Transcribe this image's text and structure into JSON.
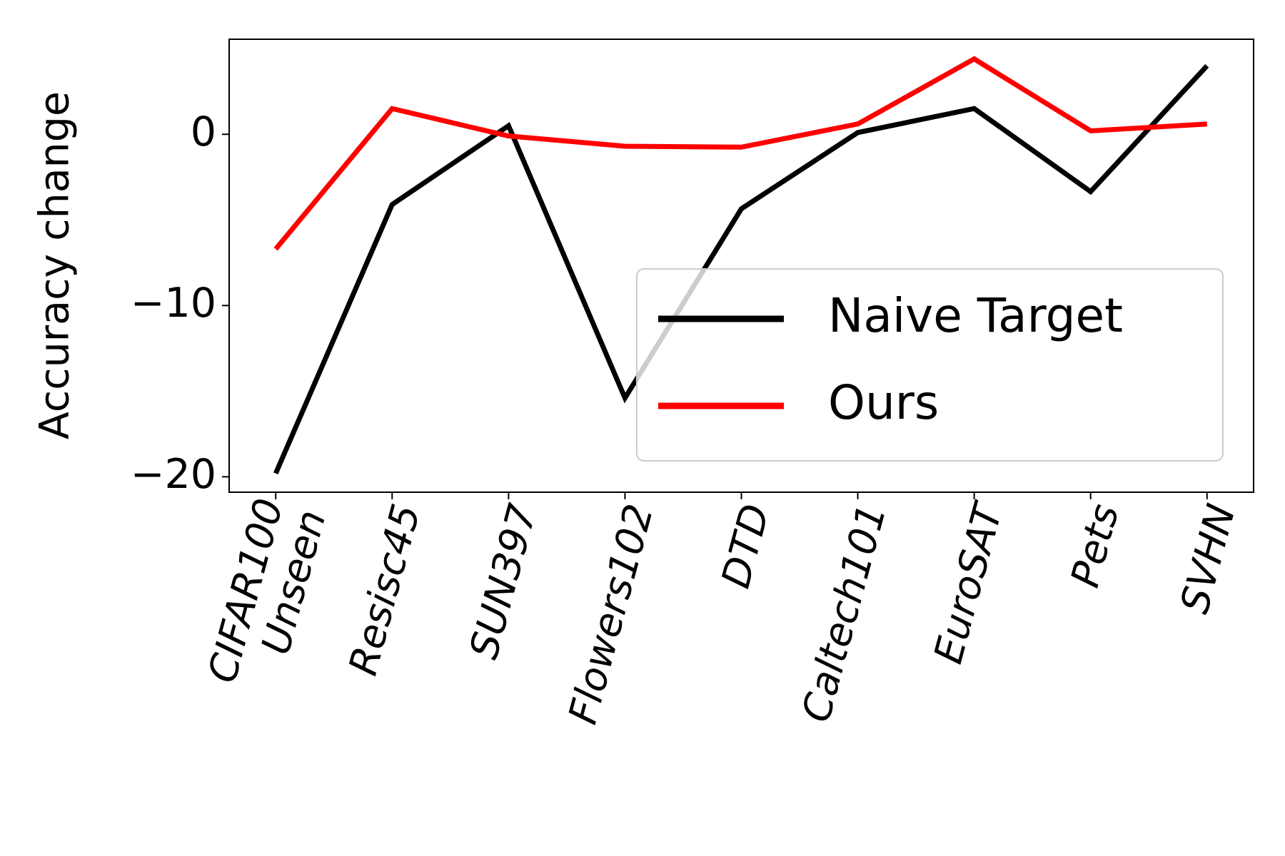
{
  "chart_data": {
    "type": "line",
    "ylabel": "Accuracy change",
    "categories": [
      "CIFAR100\nUnseen",
      "Resisc45",
      "SUN397",
      "Flowers102",
      "DTD",
      "Caltech101",
      "EuroSAT",
      "Pets",
      "SVHN"
    ],
    "series": [
      {
        "name": "Naive Target",
        "color": "#000000",
        "values": [
          -19.8,
          -4.1,
          0.5,
          -15.4,
          -4.35,
          0.1,
          1.5,
          -3.35,
          4.0
        ]
      },
      {
        "name": "Ours",
        "color": "#ff0000",
        "values": [
          -6.7,
          1.5,
          -0.1,
          -0.7,
          -0.75,
          0.6,
          4.4,
          0.2,
          0.6
        ]
      }
    ],
    "ylim": [
      -20.9,
      5.55
    ],
    "yticks": [
      {
        "value": -20,
        "label": "−20"
      },
      {
        "value": -10,
        "label": "−10"
      },
      0
    ],
    "legend": "lower right"
  }
}
